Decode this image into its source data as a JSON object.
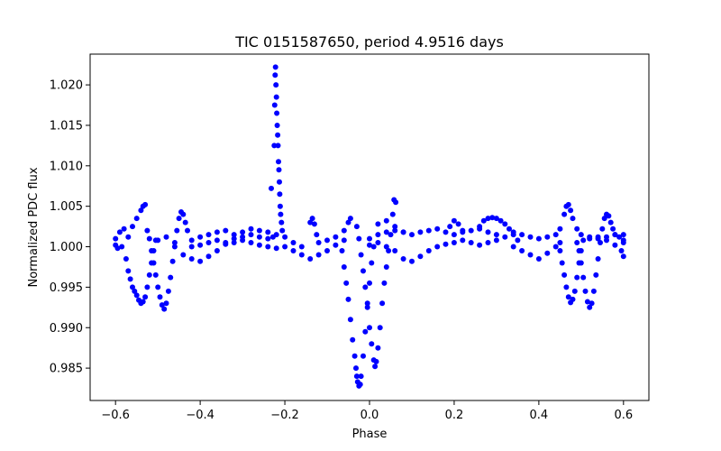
{
  "chart_data": {
    "type": "scatter",
    "title": "TIC 0151587650, period 4.9516 days",
    "xlabel": "Phase",
    "ylabel": "Normalized PDC flux",
    "xlim": [
      -0.66,
      0.66
    ],
    "ylim": [
      0.981,
      1.0238
    ],
    "xticks": [
      -0.6,
      -0.4,
      -0.2,
      0.0,
      0.2,
      0.4,
      0.6
    ],
    "xtick_labels": [
      "−0.6",
      "−0.4",
      "−0.2",
      "0.0",
      "0.2",
      "0.4",
      "0.6"
    ],
    "yticks": [
      0.985,
      0.99,
      0.995,
      1.0,
      1.005,
      1.01,
      1.015,
      1.02
    ],
    "ytick_labels": [
      "0.985",
      "0.990",
      "0.995",
      "1.000",
      "1.005",
      "1.010",
      "1.015",
      "1.020"
    ],
    "grid": false,
    "marker_color": "#0000ff",
    "series": [
      {
        "points": [
          [
            -0.6,
            1.001
          ],
          [
            -0.59,
            1.0018
          ],
          [
            -0.58,
            1.0022
          ],
          [
            -0.57,
            1.0012
          ],
          [
            -0.56,
            1.0025
          ],
          [
            -0.55,
            1.0035
          ],
          [
            -0.54,
            1.0045
          ],
          [
            -0.535,
            1.005
          ],
          [
            -0.53,
            1.0052
          ],
          [
            -0.6,
            1.0002
          ],
          [
            -0.595,
            0.9998
          ],
          [
            -0.585,
            1.0
          ],
          [
            -0.575,
            0.9985
          ],
          [
            -0.57,
            0.997
          ],
          [
            -0.565,
            0.996
          ],
          [
            -0.56,
            0.995
          ],
          [
            -0.555,
            0.9945
          ],
          [
            -0.55,
            0.994
          ],
          [
            -0.545,
            0.9934
          ],
          [
            -0.54,
            0.993
          ],
          [
            -0.535,
            0.9932
          ],
          [
            -0.53,
            0.9938
          ],
          [
            -0.525,
            0.995
          ],
          [
            -0.52,
            0.9965
          ],
          [
            -0.515,
            0.998
          ],
          [
            -0.51,
            0.9995
          ],
          [
            -0.505,
            1.0008
          ],
          [
            -0.525,
            1.002
          ],
          [
            -0.52,
            1.001
          ],
          [
            -0.515,
            0.9995
          ],
          [
            -0.51,
            0.998
          ],
          [
            -0.505,
            0.9965
          ],
          [
            -0.5,
            0.995
          ],
          [
            -0.495,
            0.9938
          ],
          [
            -0.49,
            0.9928
          ],
          [
            -0.485,
            0.9923
          ],
          [
            -0.48,
            0.993
          ],
          [
            -0.475,
            0.9945
          ],
          [
            -0.47,
            0.9962
          ],
          [
            -0.465,
            0.9982
          ],
          [
            -0.46,
            1.0
          ],
          [
            -0.455,
            1.002
          ],
          [
            -0.45,
            1.0035
          ],
          [
            -0.445,
            1.0043
          ],
          [
            -0.44,
            1.004
          ],
          [
            -0.435,
            1.003
          ],
          [
            -0.43,
            1.002
          ],
          [
            -0.5,
            1.0008
          ],
          [
            -0.48,
            1.0012
          ],
          [
            -0.46,
            1.0005
          ],
          [
            -0.44,
            0.999
          ],
          [
            -0.42,
            0.9985
          ],
          [
            -0.4,
            0.9982
          ],
          [
            -0.38,
            0.9988
          ],
          [
            -0.36,
            0.9995
          ],
          [
            -0.34,
            1.0005
          ],
          [
            -0.32,
            1.001
          ],
          [
            -0.3,
            1.0012
          ],
          [
            -0.28,
            1.0015
          ],
          [
            -0.26,
            1.0012
          ],
          [
            -0.24,
            1.001
          ],
          [
            -0.42,
            1.0008
          ],
          [
            -0.4,
            1.0012
          ],
          [
            -0.38,
            1.0015
          ],
          [
            -0.36,
            1.0018
          ],
          [
            -0.34,
            1.002
          ],
          [
            -0.32,
            1.0015
          ],
          [
            -0.3,
            1.0018
          ],
          [
            -0.28,
            1.0022
          ],
          [
            -0.26,
            1.002
          ],
          [
            -0.24,
            1.0018
          ],
          [
            -0.22,
            1.0015
          ],
          [
            -0.2,
            1.0012
          ],
          [
            -0.18,
            1.0005
          ],
          [
            -0.16,
            1.0
          ],
          [
            -0.42,
            1.0
          ],
          [
            -0.4,
            1.0002
          ],
          [
            -0.38,
            1.0005
          ],
          [
            -0.36,
            1.0008
          ],
          [
            -0.34,
            1.0003
          ],
          [
            -0.32,
            1.0005
          ],
          [
            -0.3,
            1.0008
          ],
          [
            -0.28,
            1.0005
          ],
          [
            -0.26,
            1.0002
          ],
          [
            -0.24,
            1.0
          ],
          [
            -0.22,
            0.9998
          ],
          [
            -0.2,
            1.0
          ],
          [
            -0.18,
            0.9995
          ],
          [
            -0.16,
            0.999
          ],
          [
            -0.14,
            0.9985
          ],
          [
            -0.12,
            0.999
          ],
          [
            -0.1,
            0.9995
          ],
          [
            -0.08,
            1.0002
          ],
          [
            -0.06,
            1.0008
          ],
          [
            -0.228,
            1.0012
          ],
          [
            -0.225,
            1.0125
          ],
          [
            -0.224,
            1.0175
          ],
          [
            -0.223,
            1.0212
          ],
          [
            -0.222,
            1.0222
          ],
          [
            -0.221,
            1.02
          ],
          [
            -0.22,
            1.0185
          ],
          [
            -0.219,
            1.0165
          ],
          [
            -0.218,
            1.015
          ],
          [
            -0.217,
            1.0138
          ],
          [
            -0.216,
            1.0125
          ],
          [
            -0.215,
            1.0105
          ],
          [
            -0.214,
            1.0095
          ],
          [
            -0.213,
            1.008
          ],
          [
            -0.212,
            1.0065
          ],
          [
            -0.211,
            1.005
          ],
          [
            -0.21,
            1.004
          ],
          [
            -0.208,
            1.003
          ],
          [
            -0.206,
            1.002
          ],
          [
            -0.232,
            1.0072
          ],
          [
            -0.14,
            1.003
          ],
          [
            -0.135,
            1.0035
          ],
          [
            -0.13,
            1.0028
          ],
          [
            -0.125,
            1.0015
          ],
          [
            -0.12,
            1.0005
          ],
          [
            -0.1,
            1.0008
          ],
          [
            -0.08,
            1.0012
          ],
          [
            -0.06,
            1.002
          ],
          [
            -0.05,
            1.003
          ],
          [
            -0.045,
            1.0035
          ],
          [
            -0.065,
            0.9995
          ],
          [
            -0.06,
            0.9975
          ],
          [
            -0.055,
            0.9955
          ],
          [
            -0.05,
            0.9935
          ],
          [
            -0.045,
            0.991
          ],
          [
            -0.04,
            0.9885
          ],
          [
            -0.035,
            0.9865
          ],
          [
            -0.032,
            0.985
          ],
          [
            -0.03,
            0.984
          ],
          [
            -0.028,
            0.9833
          ],
          [
            -0.025,
            0.9828
          ],
          [
            -0.022,
            0.983
          ],
          [
            -0.02,
            0.984
          ],
          [
            -0.015,
            0.9865
          ],
          [
            -0.01,
            0.9895
          ],
          [
            -0.005,
            0.9925
          ],
          [
            0.0,
            0.9955
          ],
          [
            0.005,
            0.998
          ],
          [
            0.01,
            1.0
          ],
          [
            -0.03,
            1.0025
          ],
          [
            -0.025,
            1.001
          ],
          [
            -0.02,
            0.999
          ],
          [
            -0.015,
            0.997
          ],
          [
            -0.01,
            0.995
          ],
          [
            -0.005,
            0.993
          ],
          [
            0.0,
            0.99
          ],
          [
            0.005,
            0.988
          ],
          [
            0.01,
            0.986
          ],
          [
            0.013,
            0.9852
          ],
          [
            0.016,
            0.9858
          ],
          [
            0.02,
            0.9875
          ],
          [
            0.025,
            0.99
          ],
          [
            0.03,
            0.993
          ],
          [
            0.035,
            0.9955
          ],
          [
            0.04,
            0.9975
          ],
          [
            0.045,
            0.9995
          ],
          [
            0.05,
            1.0015
          ],
          [
            0.055,
            1.004
          ],
          [
            0.058,
            1.0058
          ],
          [
            0.062,
            1.0055
          ],
          [
            0.0,
            1.001
          ],
          [
            0.02,
            1.0015
          ],
          [
            0.04,
            1.0018
          ],
          [
            0.06,
            1.002
          ],
          [
            0.08,
            1.0018
          ],
          [
            0.1,
            1.0015
          ],
          [
            0.12,
            1.0018
          ],
          [
            0.14,
            1.002
          ],
          [
            0.16,
            1.0022
          ],
          [
            0.18,
            1.0018
          ],
          [
            0.2,
            1.0015
          ],
          [
            0.22,
            1.0018
          ],
          [
            0.24,
            1.002
          ],
          [
            0.26,
            1.0022
          ],
          [
            0.28,
            1.0018
          ],
          [
            0.3,
            1.0015
          ],
          [
            0.32,
            1.0012
          ],
          [
            0.0,
            1.0002
          ],
          [
            0.02,
            1.0005
          ],
          [
            0.04,
            1.0
          ],
          [
            0.06,
            0.9995
          ],
          [
            0.08,
            0.9985
          ],
          [
            0.1,
            0.9982
          ],
          [
            0.12,
            0.9988
          ],
          [
            0.14,
            0.9995
          ],
          [
            0.16,
            1.0
          ],
          [
            0.18,
            1.0003
          ],
          [
            0.2,
            1.0005
          ],
          [
            0.22,
            1.0008
          ],
          [
            0.24,
            1.0005
          ],
          [
            0.26,
            1.0002
          ],
          [
            0.28,
            1.0005
          ],
          [
            0.3,
            1.0008
          ],
          [
            0.02,
            1.0028
          ],
          [
            0.04,
            1.0032
          ],
          [
            0.06,
            1.0025
          ],
          [
            0.08,
            1.0018
          ],
          [
            0.19,
            1.0025
          ],
          [
            0.2,
            1.0032
          ],
          [
            0.21,
            1.0028
          ],
          [
            0.22,
            1.002
          ],
          [
            0.26,
            1.0025
          ],
          [
            0.27,
            1.0032
          ],
          [
            0.28,
            1.0035
          ],
          [
            0.29,
            1.0036
          ],
          [
            0.3,
            1.0035
          ],
          [
            0.31,
            1.0032
          ],
          [
            0.32,
            1.0028
          ],
          [
            0.33,
            1.0022
          ],
          [
            0.34,
            1.0015
          ],
          [
            0.35,
            1.0008
          ],
          [
            0.34,
            1.0018
          ],
          [
            0.36,
            1.0015
          ],
          [
            0.38,
            1.0012
          ],
          [
            0.4,
            1.001
          ],
          [
            0.42,
            1.0012
          ],
          [
            0.44,
            1.0015
          ],
          [
            0.45,
            1.0022
          ],
          [
            0.46,
            1.004
          ],
          [
            0.465,
            1.005
          ],
          [
            0.47,
            1.0052
          ],
          [
            0.475,
            1.0045
          ],
          [
            0.48,
            1.0035
          ],
          [
            0.49,
            1.0022
          ],
          [
            0.5,
            1.0015
          ],
          [
            0.52,
            1.0012
          ],
          [
            0.54,
            1.001
          ],
          [
            0.56,
            1.0012
          ],
          [
            0.58,
            1.0015
          ],
          [
            0.6,
            1.0008
          ],
          [
            0.34,
            1.0
          ],
          [
            0.36,
            0.9995
          ],
          [
            0.38,
            0.999
          ],
          [
            0.4,
            0.9985
          ],
          [
            0.42,
            0.9992
          ],
          [
            0.44,
            1.0
          ],
          [
            0.45,
            1.0005
          ],
          [
            0.45,
            0.9995
          ],
          [
            0.455,
            0.998
          ],
          [
            0.46,
            0.9965
          ],
          [
            0.465,
            0.995
          ],
          [
            0.47,
            0.9938
          ],
          [
            0.475,
            0.9931
          ],
          [
            0.48,
            0.9935
          ],
          [
            0.485,
            0.9945
          ],
          [
            0.49,
            0.9962
          ],
          [
            0.495,
            0.998
          ],
          [
            0.5,
            0.9995
          ],
          [
            0.505,
            1.0008
          ],
          [
            0.49,
            1.0005
          ],
          [
            0.495,
            0.9995
          ],
          [
            0.5,
            0.998
          ],
          [
            0.505,
            0.9962
          ],
          [
            0.51,
            0.9945
          ],
          [
            0.515,
            0.9932
          ],
          [
            0.52,
            0.9925
          ],
          [
            0.525,
            0.993
          ],
          [
            0.53,
            0.9945
          ],
          [
            0.535,
            0.9965
          ],
          [
            0.54,
            0.9985
          ],
          [
            0.545,
            1.0005
          ],
          [
            0.55,
            1.0022
          ],
          [
            0.555,
            1.0035
          ],
          [
            0.56,
            1.004
          ],
          [
            0.565,
            1.0038
          ],
          [
            0.57,
            1.003
          ],
          [
            0.575,
            1.0022
          ],
          [
            0.58,
            1.0015
          ],
          [
            0.59,
            1.0012
          ],
          [
            0.595,
            0.9995
          ],
          [
            0.6,
            0.9988
          ],
          [
            0.52,
            1.001
          ],
          [
            0.54,
            1.0012
          ],
          [
            0.56,
            1.0008
          ],
          [
            0.58,
            1.0002
          ],
          [
            0.6,
            1.0005
          ],
          [
            0.6,
            1.0015
          ]
        ]
      }
    ]
  }
}
